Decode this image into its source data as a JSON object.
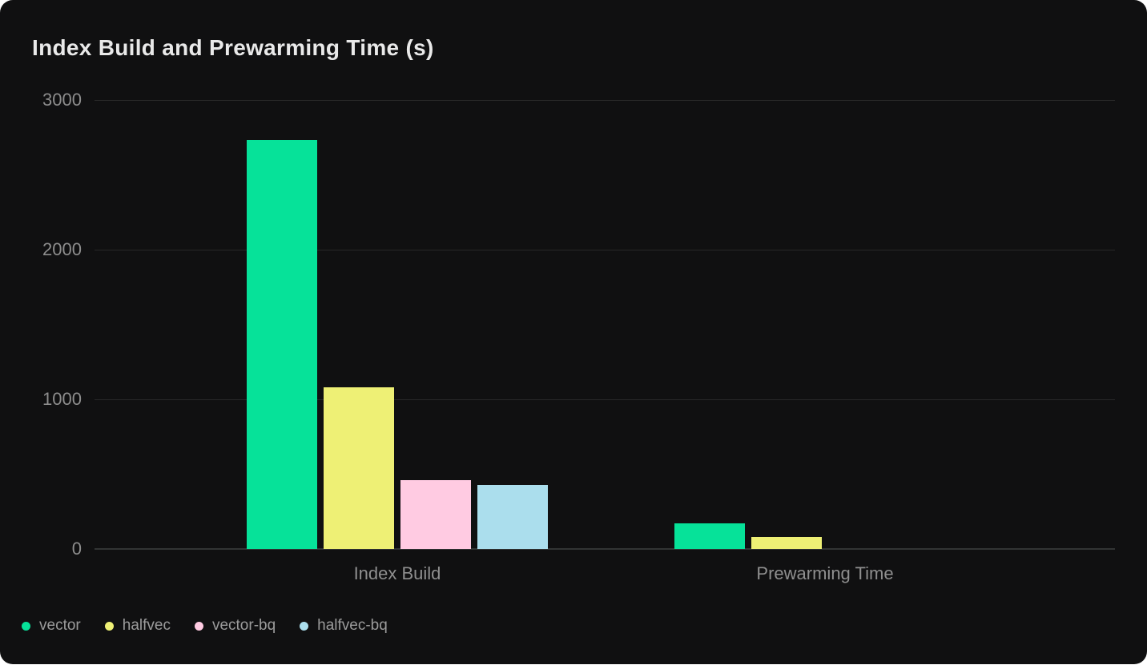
{
  "chart_data": {
    "type": "bar",
    "title": "Index Build and Prewarming Time (s)",
    "categories": [
      "Index Build",
      "Prewarming Time"
    ],
    "series": [
      {
        "name": "vector",
        "color": "#06e299",
        "values": [
          2730,
          170
        ]
      },
      {
        "name": "halfvec",
        "color": "#eef075",
        "values": [
          1080,
          80
        ]
      },
      {
        "name": "vector-bq",
        "color": "#ffcbe2",
        "values": [
          460,
          0
        ]
      },
      {
        "name": "halfvec-bq",
        "color": "#abdeed",
        "values": [
          430,
          0
        ]
      }
    ],
    "xlabel": "",
    "ylabel": "",
    "ylim": [
      0,
      3000
    ],
    "yticks": [
      0,
      1000,
      2000,
      3000
    ],
    "grid": true,
    "legend_position": "bottom-left"
  },
  "colors": {
    "page_bg": "#ffffff",
    "card_bg": "#101011",
    "grid_line": "#282828",
    "axis_line": "#323434",
    "title_text": "#e9e9e9",
    "tick_text": "#8d8d8d",
    "legend_text": "#9b9b9b"
  }
}
